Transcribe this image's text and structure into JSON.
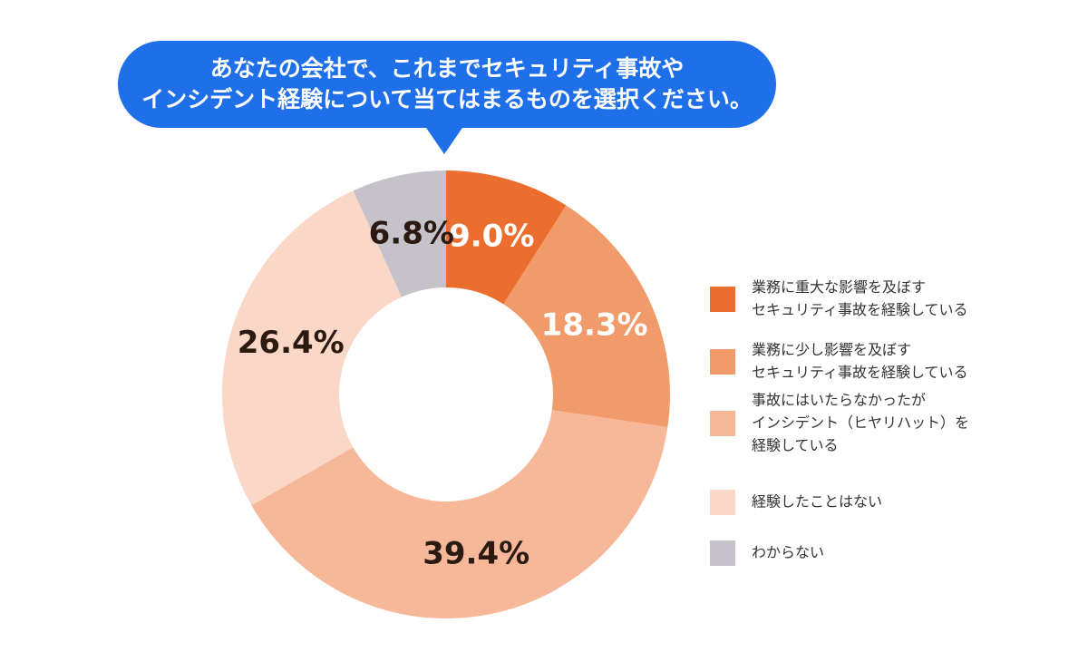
{
  "chart_data": {
    "type": "donut",
    "title": [
      "あなたの会社で、これまでセキュリティ事故や",
      "インシデント経験について当てはまるものを選択ください。"
    ],
    "categories": [
      [
        "業務に重大な影響を及ぼす",
        "セキュリティ事故を経験している"
      ],
      [
        "業務に少し影響を及ぼす",
        "セキュリティ事故を経験している"
      ],
      [
        "事故にはいたらなかったが",
        "インシデント（ヒヤリハット）を",
        "経験している"
      ],
      [
        "経験したことはない"
      ],
      [
        "わからない"
      ]
    ],
    "values": [
      9.0,
      18.3,
      39.4,
      26.4,
      6.8
    ],
    "value_labels": [
      "9.0%",
      "18.3%",
      "39.4%",
      "26.4%",
      "6.8%"
    ],
    "colors": [
      "#eb6e2f",
      "#f19b6b",
      "#f6b898",
      "#fad7c7",
      "#c5c3c9"
    ],
    "label_colors": [
      "#ffffff",
      "#ffffff",
      "#2b1a12",
      "#2b1a12",
      "#2b1a12"
    ]
  }
}
